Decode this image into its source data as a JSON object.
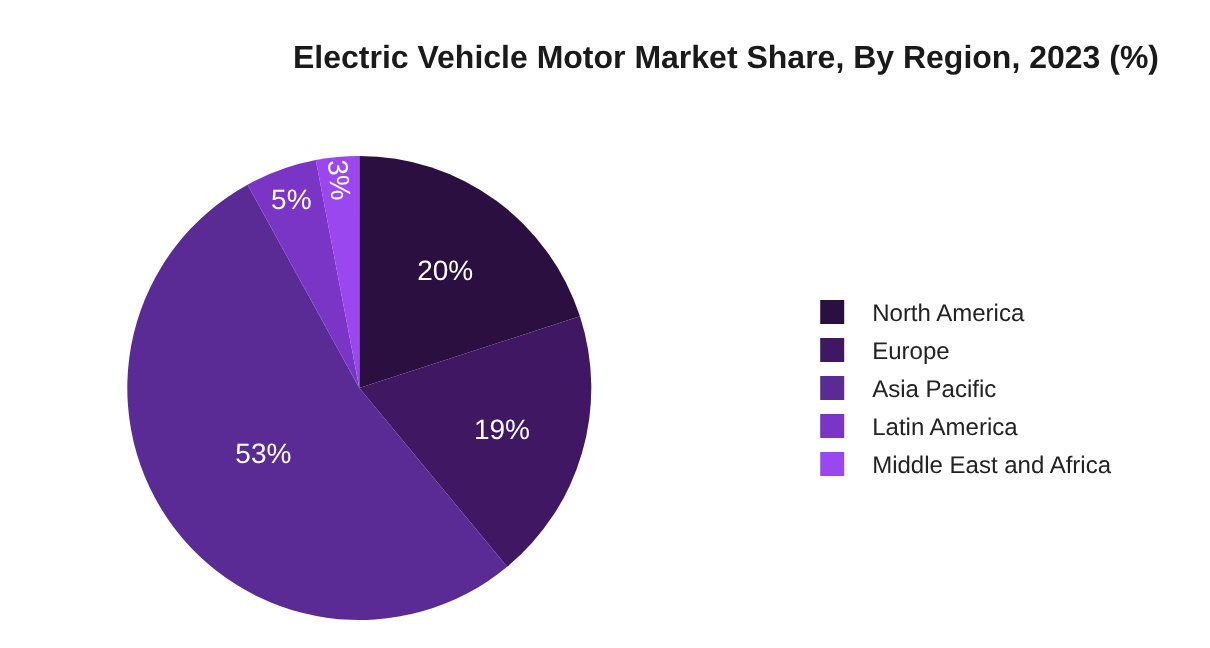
{
  "chart_data": {
    "type": "pie",
    "title": "Electric Vehicle Motor Market Share, By Region, 2023 (%)",
    "categories": [
      "North America",
      "Europe",
      "Asia Pacific",
      "Latin America",
      "Middle East and Africa"
    ],
    "values": [
      20,
      19,
      53,
      5,
      3
    ],
    "value_labels": [
      "20%",
      "19%",
      "53%",
      "5%",
      "3%"
    ],
    "colors": [
      "#2b0f40",
      "#3f1762",
      "#5a2a95",
      "#7a35c6",
      "#9a47ef"
    ],
    "legend": "right"
  }
}
